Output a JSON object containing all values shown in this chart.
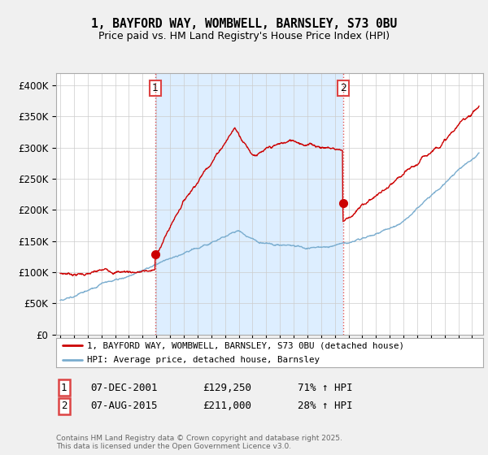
{
  "title1": "1, BAYFORD WAY, WOMBWELL, BARNSLEY, S73 0BU",
  "title2": "Price paid vs. HM Land Registry's House Price Index (HPI)",
  "ylim": [
    0,
    420000
  ],
  "yticks": [
    0,
    50000,
    100000,
    150000,
    200000,
    250000,
    300000,
    350000,
    400000
  ],
  "ytick_labels": [
    "£0",
    "£50K",
    "£100K",
    "£150K",
    "£200K",
    "£250K",
    "£300K",
    "£350K",
    "£400K"
  ],
  "line1_color": "#cc0000",
  "line2_color": "#7aadcf",
  "purchase1_date": 2001.93,
  "purchase1_price": 129250,
  "purchase2_date": 2015.59,
  "purchase2_price": 211000,
  "legend_line1": "1, BAYFORD WAY, WOMBWELL, BARNSLEY, S73 0BU (detached house)",
  "legend_line2": "HPI: Average price, detached house, Barnsley",
  "table_row1": [
    "1",
    "07-DEC-2001",
    "£129,250",
    "71% ↑ HPI"
  ],
  "table_row2": [
    "2",
    "07-AUG-2015",
    "£211,000",
    "28% ↑ HPI"
  ],
  "footer": "Contains HM Land Registry data © Crown copyright and database right 2025.\nThis data is licensed under the Open Government Licence v3.0.",
  "background_color": "#f0f0f0",
  "plot_bg_color": "#ffffff",
  "shade_color": "#ddeeff",
  "vline_color": "#dd4444",
  "grid_color": "#cccccc",
  "xlim_left": 1994.7,
  "xlim_right": 2025.8
}
